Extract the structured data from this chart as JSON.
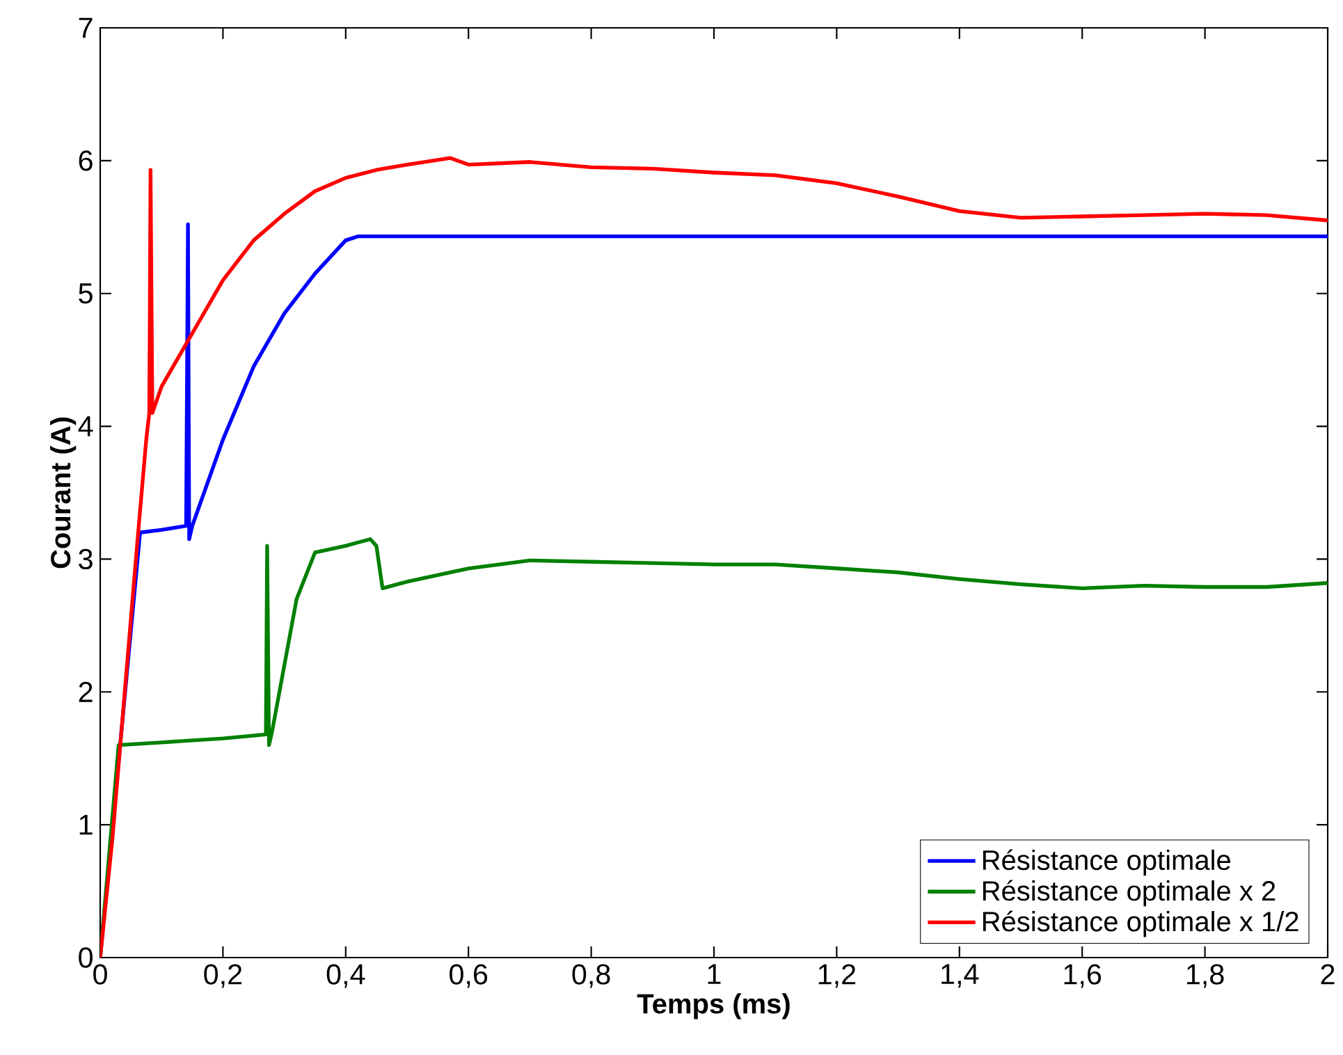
{
  "chart_data": {
    "type": "line",
    "xlabel": "Temps (ms)",
    "ylabel": "Courant (A)",
    "xlim": [
      0,
      2
    ],
    "ylim": [
      0,
      7
    ],
    "xticks": [
      0,
      {
        "value": 0.2,
        "label": "0,2"
      },
      {
        "value": 0.4,
        "label": "0,4"
      },
      {
        "value": 0.6,
        "label": "0,6"
      },
      {
        "value": 0.8,
        "label": "0,8"
      },
      1,
      {
        "value": 1.2,
        "label": "1,2"
      },
      {
        "value": 1.4,
        "label": "1,4"
      },
      {
        "value": 1.6,
        "label": "1,6"
      },
      {
        "value": 1.8,
        "label": "1,8"
      },
      2
    ],
    "yticks": [
      0,
      1,
      2,
      3,
      4,
      5,
      6,
      7
    ],
    "grid": false,
    "legend": "bottom right",
    "marker": "none",
    "line_style": "solid",
    "series": [
      {
        "name": "Résistance optimale",
        "color": "#0000ff",
        "x": [
          0,
          0.02,
          0.04,
          0.06,
          0.065,
          0.1,
          0.14,
          0.143,
          0.145,
          0.15,
          0.2,
          0.25,
          0.3,
          0.35,
          0.4,
          0.42,
          0.6,
          0.8,
          1.0,
          1.2,
          1.4,
          1.6,
          1.8,
          2.0
        ],
        "values": [
          0,
          null,
          null,
          null,
          3.2,
          3.22,
          3.25,
          5.52,
          3.15,
          3.25,
          3.9,
          4.45,
          4.85,
          5.15,
          5.4,
          5.43,
          5.43,
          5.43,
          5.43,
          5.43,
          5.43,
          5.43,
          5.43,
          5.43
        ]
      },
      {
        "name": "Résistance optimale x 2",
        "color": "#008000",
        "x": [
          0,
          0.02,
          0.03,
          0.1,
          0.2,
          0.27,
          0.272,
          0.275,
          0.28,
          0.3,
          0.32,
          0.35,
          0.4,
          0.44,
          0.45,
          0.46,
          0.5,
          0.6,
          0.7,
          0.8,
          0.9,
          1.0,
          1.1,
          1.2,
          1.3,
          1.4,
          1.5,
          1.6,
          1.7,
          1.8,
          1.9,
          2.0
        ],
        "values": [
          0,
          null,
          1.6,
          1.62,
          1.65,
          1.68,
          3.1,
          1.6,
          1.7,
          2.2,
          2.7,
          3.05,
          3.1,
          3.15,
          3.1,
          2.78,
          2.83,
          2.93,
          2.99,
          2.98,
          2.97,
          2.96,
          2.96,
          2.93,
          2.9,
          2.85,
          2.81,
          2.78,
          2.8,
          2.79,
          2.79,
          2.82
        ]
      },
      {
        "name": "Résistance optimale x 1/2",
        "color": "#ff0000",
        "x": [
          0,
          0.02,
          0.04,
          0.06,
          0.075,
          0.08,
          0.082,
          0.085,
          0.1,
          0.15,
          0.2,
          0.25,
          0.3,
          0.35,
          0.4,
          0.45,
          0.5,
          0.57,
          0.6,
          0.7,
          0.8,
          0.9,
          1.0,
          1.1,
          1.2,
          1.3,
          1.4,
          1.5,
          1.6,
          1.7,
          1.8,
          1.9,
          2.0
        ],
        "values": [
          0,
          0.9,
          2.0,
          3.1,
          3.9,
          4.1,
          5.93,
          4.1,
          4.3,
          4.7,
          5.1,
          5.4,
          5.6,
          5.77,
          5.87,
          5.93,
          5.97,
          6.02,
          5.97,
          5.99,
          5.95,
          5.94,
          5.91,
          5.89,
          5.83,
          5.73,
          5.62,
          5.57,
          5.58,
          5.59,
          5.6,
          5.59,
          5.55
        ]
      }
    ]
  }
}
